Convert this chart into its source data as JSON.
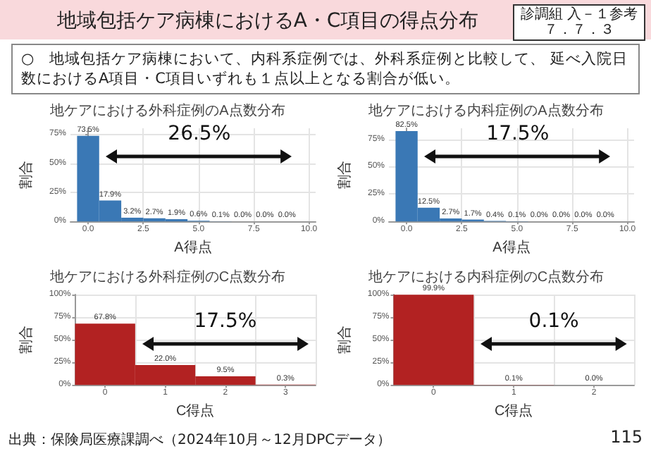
{
  "chart_data": [
    {
      "type": "histogram",
      "title": "地ケアにおける外科症例のA点数分布",
      "xlabel": "A得点",
      "ylabel": "割合",
      "color": "#3a78b5",
      "grid": true,
      "bins": [
        -0.5,
        0.5,
        1.5,
        2.5,
        3.5,
        4.5,
        5.5,
        6.5,
        7.5,
        8.5,
        9.5
      ],
      "values": [
        73.5,
        17.9,
        3.2,
        2.7,
        1.9,
        0.6,
        0.1,
        0.0,
        0.0,
        0.0
      ],
      "value_labels": [
        "73.5%",
        "17.9%",
        "3.2%",
        "2.7%",
        "1.9%",
        "0.6%",
        "0.1%",
        "0.0%",
        "0.0%",
        "0.0%"
      ],
      "xlim": [
        -0.8,
        10.3
      ],
      "xticks": [
        {
          "value": 0,
          "label": "0.0"
        },
        {
          "value": 2.5,
          "label": "2.5"
        },
        {
          "value": 5,
          "label": "5.0"
        },
        {
          "value": 7.5,
          "label": "7.5"
        },
        {
          "value": 10,
          "label": "10.0"
        }
      ],
      "ylim": [
        0,
        80
      ],
      "yticks": [
        {
          "value": 0,
          "label": "0%"
        },
        {
          "value": 25,
          "label": "25%"
        },
        {
          "value": 50,
          "label": "50%"
        },
        {
          "value": 75,
          "label": "75%"
        }
      ],
      "annotations": [
        "26.5%",
        "地域包括ケア病棟におけるA・C項目の得点分布",
        "診調組 入－１参考",
        "７．７．３",
        "○　地域包括ケア病棟において、内科系症例では、外科系症例と比較して、 延べ入院日数におけるA項目・C項目いずれも１点以上となる割合が低い。",
        "出典：保険局医療課調べ（2024年10月～12月DPCデータ）",
        "115"
      ]
    },
    {
      "type": "histogram",
      "title": "地ケアにおける内科症例のA点数分布",
      "xlabel": "A得点",
      "ylabel": "割合",
      "color": "#3a78b5",
      "grid": true,
      "bins": [
        -0.5,
        0.5,
        1.5,
        2.5,
        3.5,
        4.5,
        5.5,
        6.5,
        7.5,
        8.5,
        9.5
      ],
      "values": [
        82.5,
        12.5,
        2.7,
        1.7,
        0.4,
        0.1,
        0.0,
        0.0,
        0.0,
        0.0
      ],
      "value_labels": [
        "82.5%",
        "12.5%",
        "2.7%",
        "1.7%",
        "0.4%",
        "0.1%",
        "0.0%",
        "0.0%",
        "0.0%",
        "0.0%"
      ],
      "xlim": [
        -0.8,
        10.3
      ],
      "xticks": [
        {
          "value": 0,
          "label": "0.0"
        },
        {
          "value": 2.5,
          "label": "2.5"
        },
        {
          "value": 5,
          "label": "5.0"
        },
        {
          "value": 7.5,
          "label": "7.5"
        },
        {
          "value": 10,
          "label": "10.0"
        }
      ],
      "ylim": [
        0,
        85
      ],
      "yticks": [
        {
          "value": 0,
          "label": "0%"
        },
        {
          "value": 25,
          "label": "25%"
        },
        {
          "value": 50,
          "label": "50%"
        },
        {
          "value": 75,
          "label": "75%"
        }
      ],
      "annotations": [
        "17.5%"
      ]
    },
    {
      "type": "bar",
      "title": "地ケアにおける外科症例のC点数分布",
      "xlabel": "C得点",
      "ylabel": "割合",
      "color": "#b22222",
      "grid": true,
      "categories": [
        "0",
        "1",
        "2",
        "3"
      ],
      "values": [
        67.8,
        22.0,
        9.5,
        0.3
      ],
      "value_labels": [
        "67.8%",
        "22.0%",
        "9.5%",
        "0.3%"
      ],
      "ylim": [
        0,
        100
      ],
      "yticks": [
        {
          "value": 0,
          "label": "0%"
        },
        {
          "value": 25,
          "label": "25%"
        },
        {
          "value": 50,
          "label": "50%"
        },
        {
          "value": 75,
          "label": "75%"
        },
        {
          "value": 100,
          "label": "100%"
        }
      ],
      "annotations": [
        "17.5%"
      ]
    },
    {
      "type": "bar",
      "title": "地ケアにおける内科症例のC点数分布",
      "xlabel": "C得点",
      "ylabel": "割合",
      "color": "#b22222",
      "grid": true,
      "categories": [
        "0",
        "1",
        "2"
      ],
      "values": [
        99.9,
        0.1,
        0.0
      ],
      "value_labels": [
        "99.9%",
        "0.1%",
        "0.0%"
      ],
      "ylim": [
        0,
        100
      ],
      "yticks": [
        {
          "value": 0,
          "label": "0%"
        },
        {
          "value": 25,
          "label": "25%"
        },
        {
          "value": 50,
          "label": "50%"
        },
        {
          "value": 75,
          "label": "75%"
        },
        {
          "value": 100,
          "label": "100%"
        }
      ],
      "annotations": [
        "0.1%"
      ]
    }
  ]
}
